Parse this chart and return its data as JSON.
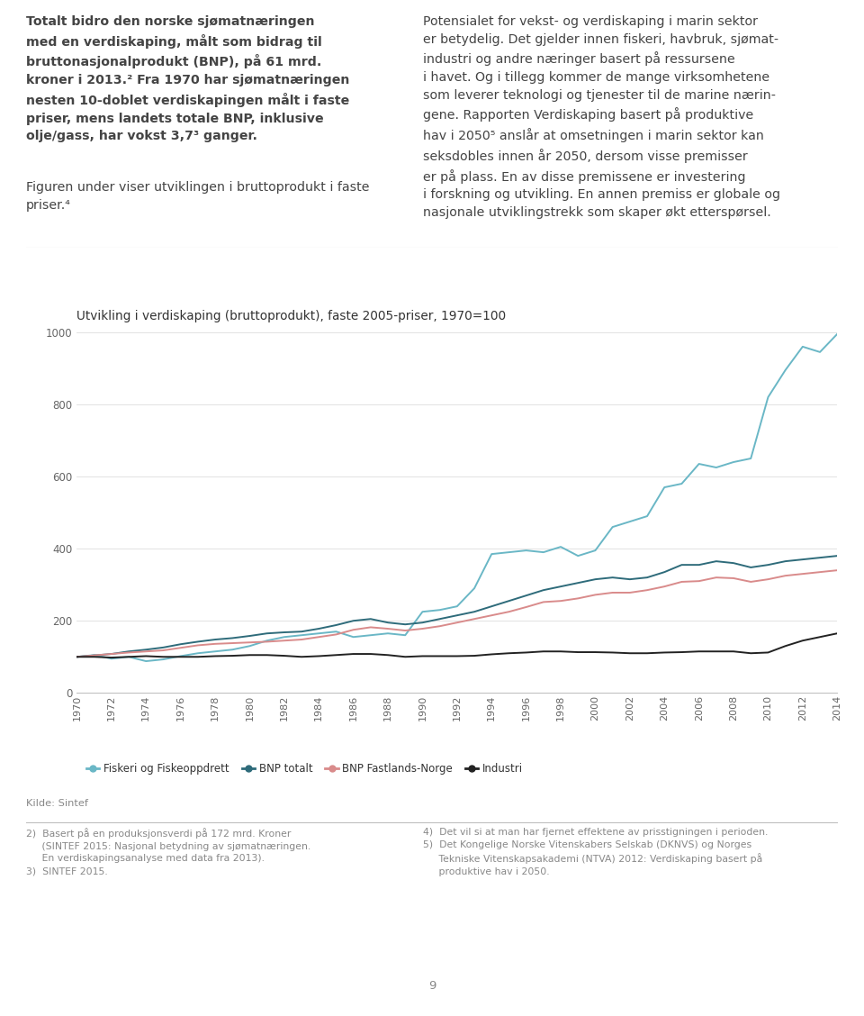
{
  "title": "Utvikling i verdiskaping (bruttoprodukt), faste 2005-priser, 1970=100",
  "years": [
    1970,
    1971,
    1972,
    1973,
    1974,
    1975,
    1976,
    1977,
    1978,
    1979,
    1980,
    1981,
    1982,
    1983,
    1984,
    1985,
    1986,
    1987,
    1988,
    1989,
    1990,
    1991,
    1992,
    1993,
    1994,
    1995,
    1996,
    1997,
    1998,
    1999,
    2000,
    2001,
    2002,
    2003,
    2004,
    2005,
    2006,
    2007,
    2008,
    2009,
    2010,
    2011,
    2012,
    2013,
    2014
  ],
  "fiskeri": [
    100,
    105,
    95,
    100,
    88,
    93,
    102,
    110,
    115,
    120,
    130,
    145,
    155,
    160,
    165,
    170,
    155,
    160,
    165,
    160,
    225,
    230,
    240,
    290,
    385,
    390,
    395,
    390,
    405,
    380,
    395,
    460,
    475,
    490,
    570,
    580,
    635,
    625,
    640,
    650,
    820,
    895,
    960,
    945,
    995
  ],
  "bnp_totalt": [
    100,
    104,
    108,
    115,
    120,
    126,
    135,
    142,
    148,
    152,
    158,
    165,
    168,
    170,
    178,
    188,
    200,
    205,
    195,
    190,
    195,
    205,
    215,
    225,
    240,
    255,
    270,
    285,
    295,
    305,
    315,
    320,
    315,
    320,
    335,
    355,
    355,
    365,
    360,
    348,
    355,
    365,
    370,
    375,
    380
  ],
  "bnp_fastlands": [
    100,
    104,
    108,
    112,
    115,
    118,
    125,
    132,
    136,
    138,
    140,
    142,
    145,
    148,
    155,
    162,
    175,
    182,
    178,
    173,
    178,
    185,
    195,
    205,
    215,
    225,
    238,
    252,
    255,
    262,
    272,
    278,
    278,
    285,
    295,
    308,
    310,
    320,
    318,
    308,
    315,
    325,
    330,
    335,
    340
  ],
  "industri": [
    100,
    100,
    98,
    100,
    102,
    100,
    100,
    100,
    102,
    103,
    105,
    105,
    103,
    100,
    102,
    105,
    108,
    108,
    105,
    100,
    102,
    102,
    102,
    103,
    107,
    110,
    112,
    115,
    115,
    113,
    113,
    112,
    110,
    110,
    112,
    113,
    115,
    115,
    115,
    110,
    112,
    130,
    145,
    155,
    165
  ],
  "color_fiskeri": "#6ab7c6",
  "color_bnp_totalt": "#2e6b7a",
  "color_bnp_fastlands": "#d98b8b",
  "color_industri": "#222222",
  "ylim": [
    0,
    1000
  ],
  "yticks": [
    0,
    200,
    400,
    600,
    800,
    1000
  ],
  "source_text": "Kilde: Sintef",
  "text_left_col_bold": "Totalt bidro den norske sjømatnæringen\nmed en verdiskaping, målt som bidrag til\nbruttonasjonalprodukt (BNP), på 61 mrd.\nkroner i 2013.² Fra 1970 har sjømatnæringen\nnesten 10-doblet verdiskapingen målt i faste\npriser, mens landets totale BNP, inklusive\nolje/gass, har vokst 3,7³ ganger.",
  "text_left_col_normal": "Figuren under viser utviklingen i bruttoprodukt i faste\npriser.⁴",
  "text_right_col": "Potensialet for vekst- og verdiskaping i marin sektor\ner betydelig. Det gjelder innen fiskeri, havbruk, sjømat-\nindustri og andre næringer basert på ressursene\ni havet. Og i tillegg kommer de mange virksomhetene\nsom leverer teknologi og tjenester til de marine nærin-\ngene. Rapporten Verdiskaping basert på produktive\nhav i 2050⁵ anslår at omsetningen i marin sektor kan\nseksdobles innen år 2050, dersom visse premisser\ner på plass. En av disse premissene er investering\ni forskning og utvikling. En annen premiss er globale og\nnasjonale utviklingstrekk som skaper økt etterspørsel.",
  "footnote_left_normal": "2)  Basert på en produksjonsverdi på 172 mrd. Kroner\n     (SINTEF 2015: ",
  "footnote_left_italic": "Nasjonal betydning av sjømatnæringen.\n     En verdiskapingsanalyse med data fra 2013",
  "footnote_left_end": ").\n3)  SINTEF 2015.",
  "footnote_right_normal": "4)  Det vil si at man har fjernet effektene av prisstigningen i perioden.\n5)  Det Kongelige Norske Vitenskabers Selskab (DKNVS) og Norges\n     Tekniske Vitenskapsakademi (NTVA) 2012: ",
  "footnote_right_italic": "Verdiskaping basert på\n     produktive hav i 2050",
  "footnote_right_end": ".",
  "page_number": "9",
  "legend_items": [
    "Fiskeri og Fiskeoppdrett",
    "BNP totalt",
    "BNP Fastlands-Norge",
    "Industri"
  ],
  "background_color": "#ffffff",
  "text_color": "#444444",
  "light_text_color": "#888888"
}
